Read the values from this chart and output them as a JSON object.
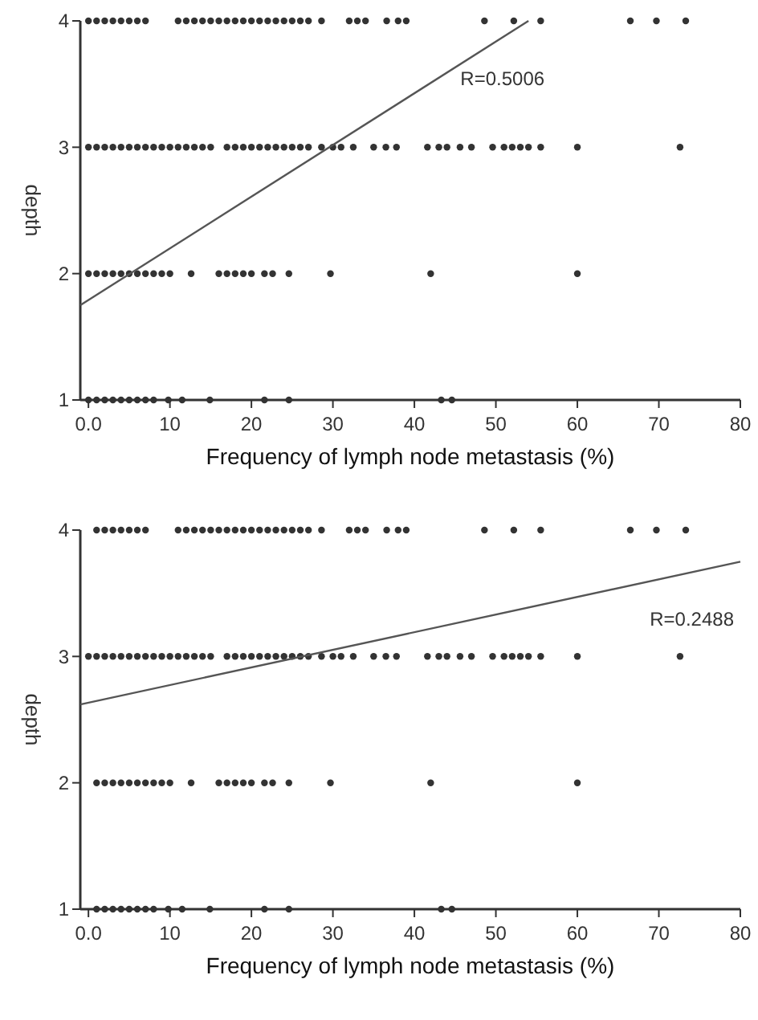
{
  "chart_data": [
    {
      "type": "scatter",
      "xlabel": "Frequency of lymph node metastasis (%)",
      "ylabel": "depth",
      "xlim": [
        -1,
        80
      ],
      "ylim": [
        1,
        4
      ],
      "xticks": [
        {
          "value": 0,
          "label": "0.0"
        },
        10,
        20,
        30,
        40,
        50,
        60,
        70,
        80
      ],
      "yticks": [
        1,
        2,
        3,
        4
      ],
      "annotations": [
        "R=0.5006"
      ],
      "series": [
        {
          "marker": "circle",
          "color": "#333333",
          "x": [
            0,
            1,
            2,
            3,
            4,
            5,
            6,
            7,
            11,
            12,
            13,
            14,
            15,
            16,
            17,
            18,
            19,
            20,
            21,
            22,
            23,
            24,
            25,
            26,
            27,
            28.6,
            32,
            33,
            34,
            36.6,
            38,
            39,
            48.6,
            52.2,
            55.5,
            66.5,
            69.7,
            73.3
          ],
          "values": [
            4,
            4,
            4,
            4,
            4,
            4,
            4,
            4,
            4,
            4,
            4,
            4,
            4,
            4,
            4,
            4,
            4,
            4,
            4,
            4,
            4,
            4,
            4,
            4,
            4,
            4,
            4,
            4,
            4,
            4,
            4,
            4,
            4,
            4,
            4,
            4,
            4,
            4
          ]
        },
        {
          "marker": "circle",
          "color": "#333333",
          "x": [
            0,
            1,
            2,
            3,
            4,
            5,
            6,
            7,
            8,
            9,
            10,
            11,
            12,
            13,
            14,
            15,
            17,
            18,
            19,
            20,
            21,
            22,
            23,
            24,
            25,
            26,
            27,
            28.6,
            30,
            31,
            32.5,
            35,
            36.5,
            37.8,
            41.6,
            43,
            44,
            45.6,
            47,
            49.6,
            51,
            52,
            53,
            54,
            55.5,
            60,
            72.6
          ],
          "values": [
            3,
            3,
            3,
            3,
            3,
            3,
            3,
            3,
            3,
            3,
            3,
            3,
            3,
            3,
            3,
            3,
            3,
            3,
            3,
            3,
            3,
            3,
            3,
            3,
            3,
            3,
            3,
            3,
            3,
            3,
            3,
            3,
            3,
            3,
            3,
            3,
            3,
            3,
            3,
            3,
            3,
            3,
            3,
            3,
            3,
            3,
            3
          ]
        },
        {
          "marker": "circle",
          "color": "#333333",
          "x": [
            0,
            1,
            2,
            3,
            4,
            5,
            6,
            7,
            8,
            9,
            10,
            12.6,
            16,
            17,
            18,
            19,
            20,
            21.6,
            22.6,
            24.6,
            29.7,
            42,
            60
          ],
          "values": [
            2,
            2,
            2,
            2,
            2,
            2,
            2,
            2,
            2,
            2,
            2,
            2,
            2,
            2,
            2,
            2,
            2,
            2,
            2,
            2,
            2,
            2,
            2
          ]
        },
        {
          "marker": "circle",
          "color": "#333333",
          "x": [
            0,
            1,
            2,
            3,
            4,
            5,
            6,
            7,
            8,
            9.8,
            11.5,
            14.9,
            21.6,
            24.6,
            43.3,
            44.6
          ],
          "values": [
            1,
            1,
            1,
            1,
            1,
            1,
            1,
            1,
            1,
            1,
            1,
            1,
            1,
            1,
            1,
            1
          ]
        },
        {
          "type": "line",
          "color": "#555555",
          "x": [
            -1,
            54
          ],
          "values": [
            1.75,
            4
          ]
        }
      ]
    },
    {
      "type": "scatter",
      "xlabel": "Frequency of lymph node metastasis (%)",
      "ylabel": "depth",
      "xlim": [
        -1,
        80
      ],
      "ylim": [
        1,
        4
      ],
      "xticks": [
        {
          "value": 0,
          "label": "0.0"
        },
        10,
        20,
        30,
        40,
        50,
        60,
        70,
        80
      ],
      "yticks": [
        1,
        2,
        3,
        4
      ],
      "annotations": [
        "R=0.2488"
      ],
      "series": [
        {
          "marker": "circle",
          "color": "#333333",
          "x": [
            1,
            2,
            3,
            4,
            5,
            6,
            7,
            11,
            12,
            13,
            14,
            15,
            16,
            17,
            18,
            19,
            20,
            21,
            22,
            23,
            24,
            25,
            26,
            27,
            28.6,
            32,
            33,
            34,
            36.6,
            38,
            39,
            48.6,
            52.2,
            55.5,
            66.5,
            69.7,
            73.3
          ],
          "values": [
            4,
            4,
            4,
            4,
            4,
            4,
            4,
            4,
            4,
            4,
            4,
            4,
            4,
            4,
            4,
            4,
            4,
            4,
            4,
            4,
            4,
            4,
            4,
            4,
            4,
            4,
            4,
            4,
            4,
            4,
            4,
            4,
            4,
            4,
            4,
            4,
            4
          ]
        },
        {
          "marker": "circle",
          "color": "#333333",
          "x": [
            0,
            1,
            2,
            3,
            4,
            5,
            6,
            7,
            8,
            9,
            10,
            11,
            12,
            13,
            14,
            15,
            17,
            18,
            19,
            20,
            21,
            22,
            23,
            24,
            25,
            26,
            27,
            28.6,
            30,
            31,
            32.5,
            35,
            36.5,
            37.8,
            41.6,
            43,
            44,
            45.6,
            47,
            49.6,
            51,
            52,
            53,
            54,
            55.5,
            60,
            72.6
          ],
          "values": [
            3,
            3,
            3,
            3,
            3,
            3,
            3,
            3,
            3,
            3,
            3,
            3,
            3,
            3,
            3,
            3,
            3,
            3,
            3,
            3,
            3,
            3,
            3,
            3,
            3,
            3,
            3,
            3,
            3,
            3,
            3,
            3,
            3,
            3,
            3,
            3,
            3,
            3,
            3,
            3,
            3,
            3,
            3,
            3,
            3,
            3,
            3
          ]
        },
        {
          "marker": "circle",
          "color": "#333333",
          "x": [
            1,
            2,
            3,
            4,
            5,
            6,
            7,
            8,
            9,
            10,
            12.6,
            16,
            17,
            18,
            19,
            20,
            21.6,
            22.6,
            24.6,
            29.7,
            42,
            60
          ],
          "values": [
            2,
            2,
            2,
            2,
            2,
            2,
            2,
            2,
            2,
            2,
            2,
            2,
            2,
            2,
            2,
            2,
            2,
            2,
            2,
            2,
            2,
            2
          ]
        },
        {
          "marker": "circle",
          "color": "#333333",
          "x": [
            1,
            2,
            3,
            4,
            5,
            6,
            7,
            8,
            9.8,
            11.5,
            14.9,
            21.6,
            24.6,
            43.3,
            44.6
          ],
          "values": [
            1,
            1,
            1,
            1,
            1,
            1,
            1,
            1,
            1,
            1,
            1,
            1,
            1,
            1,
            1
          ]
        },
        {
          "type": "line",
          "color": "#555555",
          "x": [
            -1,
            80
          ],
          "values": [
            2.62,
            3.75
          ]
        }
      ]
    }
  ]
}
